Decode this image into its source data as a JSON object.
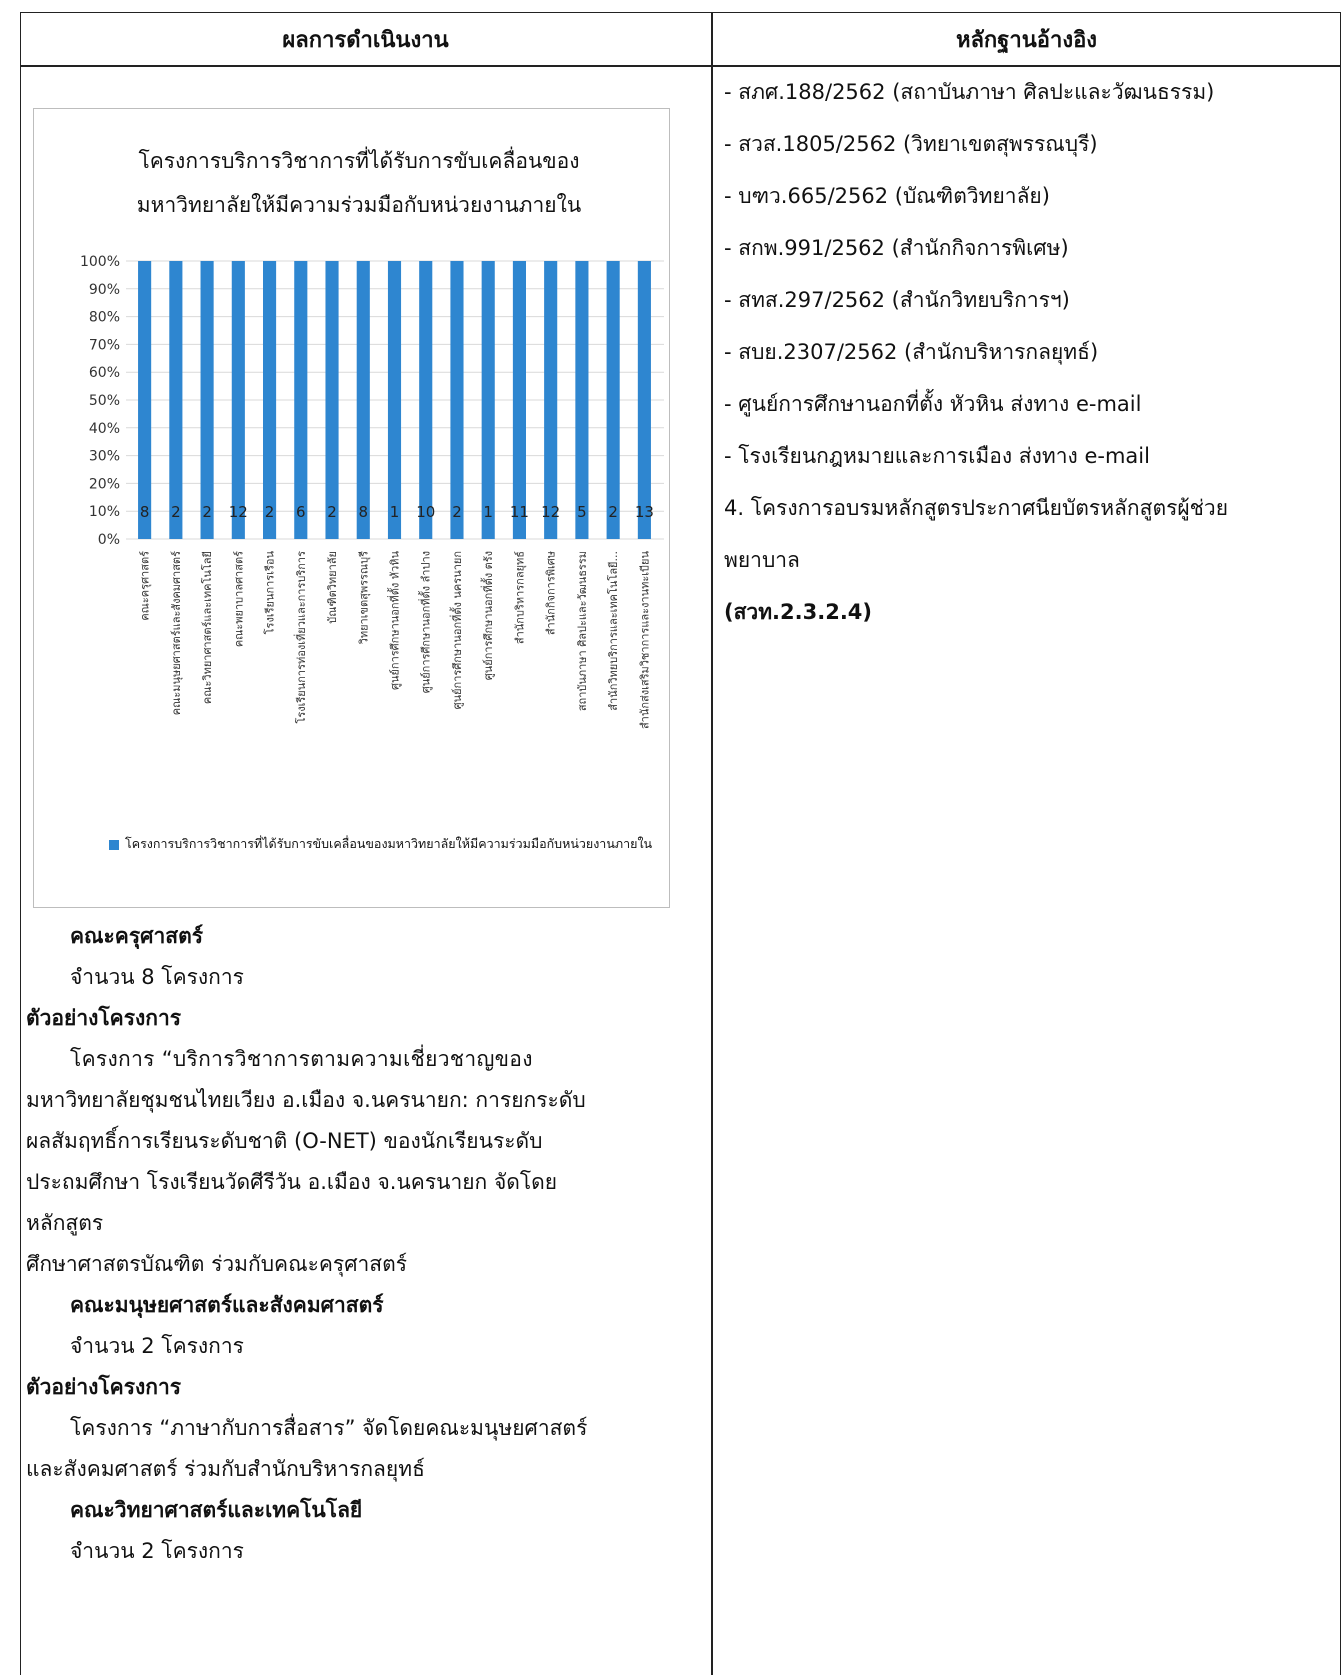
{
  "table": {
    "header_left": "ผลการดำเนินงาน",
    "header_right": "หลักฐานอ้างอิง"
  },
  "chart_data": {
    "type": "bar",
    "title_line1": "โครงการบริการวิชาการที่ได้รับการขับเคลื่อนของ",
    "title_line2": "มหาวิทยาลัยให้มีความร่วมมือกับหน่วยงานภายใน",
    "categories": [
      "คณะครุศาสตร์",
      "คณะมนุษยศาสตร์และสังคมศาสตร์",
      "คณะวิทยาศาสตร์และเทคโนโลยี",
      "คณะพยาบาลศาสตร์",
      "โรงเรียนการเรือน",
      "โรงเรียนการท่องเที่ยวและการบริการ",
      "บัณฑิตวิทยาลัย",
      "วิทยาเขตสุพรรณบุรี",
      "ศูนย์การศึกษานอกที่ตั้ง หัวหิน",
      "ศูนย์การศึกษานอกที่ตั้ง ลำปาง",
      "ศูนย์การศึกษานอกที่ตั้ง นครนายก",
      "ศูนย์การศึกษานอกที่ตั้ง ตรัง",
      "สำนักบริหารกลยุทธ์",
      "สำนักกิจการพิเศษ",
      "สถาบันภาษา ศิลปะและวัฒนธรรม",
      "สำนักวิทยบริการและเทคโนโลยี...",
      "สำนักส่งเสริมวิชาการและงานทะเบียน"
    ],
    "values": [
      100,
      100,
      100,
      100,
      100,
      100,
      100,
      100,
      100,
      100,
      100,
      100,
      100,
      100,
      100,
      100,
      100
    ],
    "data_labels": [
      "8",
      "2",
      "2",
      "12",
      "2",
      "6",
      "2",
      "8",
      "1",
      "10",
      "2",
      "1",
      "11",
      "12",
      "5",
      "2",
      "13"
    ],
    "yticks": [
      "100%",
      "90%",
      "80%",
      "70%",
      "60%",
      "50%",
      "40%",
      "30%",
      "20%",
      "10%",
      "0%"
    ],
    "ylim": [
      0,
      100
    ],
    "grid": true,
    "legend_position": "bottom",
    "legend_label": "โครงการบริการวิชาการที่ได้รับการขับเคลื่อนของมหาวิทยาลัยให้มีความร่วมมือกับหน่วยงานภายใน",
    "bar_color": "#2e86d0"
  },
  "left": {
    "faculty1": "คณะครุศาสตร์",
    "count1": "จำนวน 8 โครงการ",
    "example1_heading": "ตัวอย่างโครงการ",
    "example1_lines": [
      "โครงการ “บริการวิชาการตามความเชี่ยวชาญของ",
      "มหาวิทยาลัยชุมชนไทยเวียง อ.เมือง จ.นครนายก: การยกระดับ",
      "ผลสัมฤทธิ์การเรียนระดับชาติ (O-NET) ของนักเรียนระดับ",
      "ประถมศึกษา โรงเรียนวัดศีรีวัน อ.เมือง จ.นครนายก จัดโดย",
      "หลักสูตร",
      "ศึกษาศาสตรบัณฑิต ร่วมกับคณะครุศาสตร์"
    ],
    "faculty2": "คณะมนุษยศาสตร์และสังคมศาสตร์",
    "count2": "จำนวน 2 โครงการ",
    "example2_heading": "ตัวอย่างโครงการ",
    "example2_lines": [
      "โครงการ “ภาษากับการสื่อสาร” จัดโดยคณะมนุษยศาสตร์",
      "และสังคมศาสตร์ ร่วมกับสำนักบริหารกลยุทธ์"
    ],
    "faculty3": "คณะวิทยาศาสตร์และเทคโนโลยี",
    "count3": "จำนวน 2 โครงการ"
  },
  "right": {
    "refs": [
      "- สภศ.188/2562 (สถาบันภาษา ศิลปะและวัฒนธรรม)",
      "- สวส.1805/2562 (วิทยาเขตสุพรรณบุรี)",
      "- บฑว.665/2562 (บัณฑิตวิทยาลัย)",
      "- สกพ.991/2562 (สำนักกิจการพิเศษ)",
      "- สทส.297/2562 (สำนักวิทยบริการฯ)",
      "- สบย.2307/2562 (สำนักบริหารกลยุทธ์)",
      "- ศูนย์การศึกษานอกที่ตั้ง หัวหิน ส่งทาง e-mail",
      "- โรงเรียนกฎหมายและการเมือง ส่งทาง e-mail"
    ],
    "item4_line1": "4. โครงการอบรมหลักสูตรประกาศนียบัตรหลักสูตรผู้ช่วย",
    "item4_line2": "พยาบาล",
    "item4_code": "(สวท.2.3.2.4)"
  }
}
